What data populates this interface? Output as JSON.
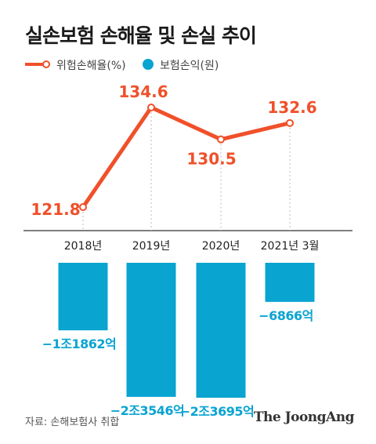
{
  "title": "실손보험 손해율 및 손실 추이",
  "legend": {
    "line_label": "위험손해율(%)",
    "bar_label": "보험손익(원)"
  },
  "colors": {
    "line": "#f0502a",
    "bar": "#0aa4d1",
    "value_line": "#f0502a",
    "value_bar": "#0aa4d1"
  },
  "chart_data": {
    "type": "bar+line",
    "categories": [
      "2018년",
      "2019년",
      "2020년",
      "2021년 3월"
    ],
    "series": [
      {
        "name": "위험손해율(%)",
        "type": "line",
        "values": [
          121.8,
          134.6,
          130.5,
          132.6
        ],
        "labels": [
          "121.8",
          "134.6",
          "130.5",
          "132.6"
        ]
      },
      {
        "name": "보험손익(원)",
        "type": "bar",
        "values_eok": [
          -11862,
          -23546,
          -23695,
          -6866
        ],
        "labels": [
          "−1조1862억",
          "−2조3546억",
          "−2조3695억",
          "−6866억"
        ]
      }
    ]
  },
  "source": "자료: 손해보험사 취합",
  "brand": "The JoongAng"
}
